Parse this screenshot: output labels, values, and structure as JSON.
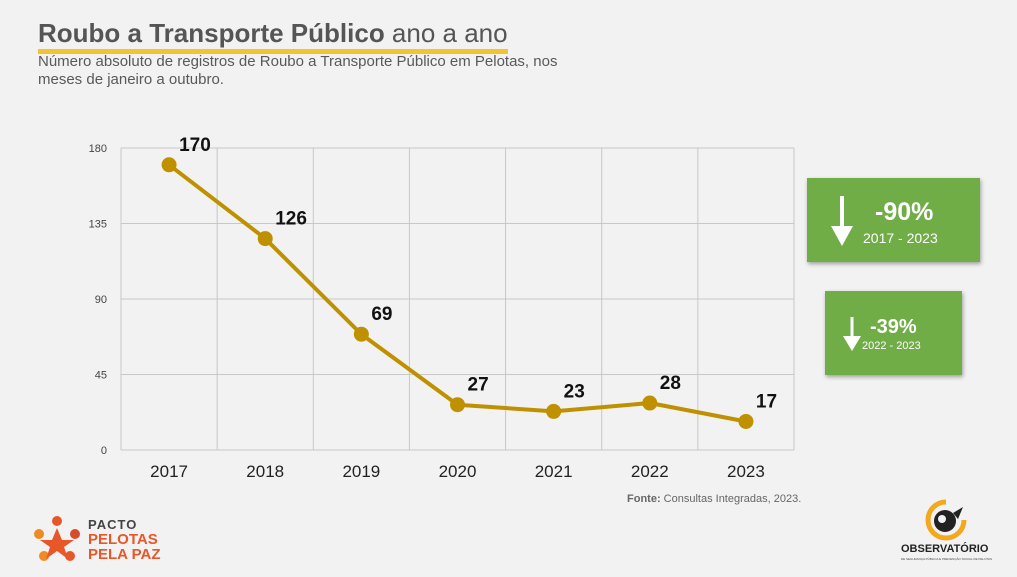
{
  "header": {
    "title_bold": "Roubo a Transporte Público",
    "title_rest": " ano a ano",
    "subtitle": "Número absoluto de registros de Roubo a Transporte Público em Pelotas, nos meses de janeiro a outubro."
  },
  "chart_data": {
    "type": "line",
    "categories": [
      "2017",
      "2018",
      "2019",
      "2020",
      "2021",
      "2022",
      "2023"
    ],
    "values": [
      170,
      126,
      69,
      27,
      23,
      28,
      17
    ],
    "yticks": [
      0,
      45,
      90,
      135,
      180
    ],
    "ylim": [
      0,
      180
    ],
    "grid": true,
    "line_color": "#bf9000",
    "data_labels": true
  },
  "badges": [
    {
      "pct": "-90%",
      "range": "2017 - 2023",
      "icon": "down-arrow-icon",
      "color": "#70ad47"
    },
    {
      "pct": "-39%",
      "range": "2022 - 2023",
      "icon": "down-arrow-icon",
      "color": "#70ad47"
    }
  ],
  "source": {
    "label": "Fonte:",
    "text": " Consultas Integradas, 2023."
  },
  "logos": {
    "left": {
      "line1": "PACTO",
      "line2": "PELOTAS",
      "line3": "PELA PAZ"
    },
    "right": {
      "name": "OBSERVATÓRIO",
      "tagline": "DE SEGURANÇA PÚBLICA E PREVENÇÃO SOCIAL DE PELOTAS"
    }
  }
}
